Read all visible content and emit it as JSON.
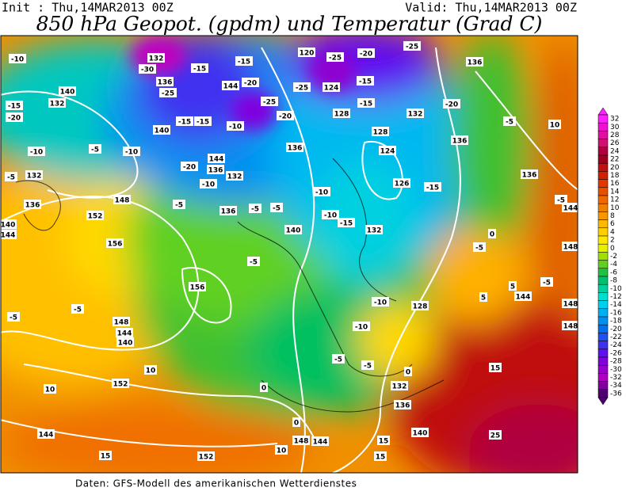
{
  "header": {
    "init": "Init : Thu,14MAR2013 00Z",
    "valid": "Valid: Thu,14MAR2013 00Z",
    "title": "850 hPa Geopot. (gpdm) und Temperatur (Grad C)"
  },
  "footer": "Daten: GFS-Modell des amerikanischen Wetterdienstes",
  "legend": {
    "labels": [
      32,
      30,
      28,
      26,
      24,
      22,
      20,
      18,
      16,
      14,
      12,
      10,
      8,
      6,
      4,
      2,
      0,
      -2,
      -4,
      -6,
      -8,
      -10,
      -12,
      -14,
      -16,
      -18,
      -20,
      -22,
      -24,
      -26,
      -28,
      -30,
      -32,
      -34,
      -36
    ],
    "colors": [
      "#ff20ff",
      "#f010d0",
      "#e010a0",
      "#d01070",
      "#b00040",
      "#a00020",
      "#c01010",
      "#d02000",
      "#e03800",
      "#e85000",
      "#f06800",
      "#f08000",
      "#f89800",
      "#ffb800",
      "#ffd000",
      "#ffe800",
      "#e8f000",
      "#a0e000",
      "#60d020",
      "#20c040",
      "#00c070",
      "#00d0a0",
      "#00e0d0",
      "#00d0f0",
      "#00b0f0",
      "#0090f0",
      "#0070f0",
      "#2050f0",
      "#4030f0",
      "#6010f0",
      "#8000e0",
      "#9800d0",
      "#b000c0",
      "#8000a0",
      "#500070"
    ]
  },
  "map_labels": [
    -10,
    132,
    -30,
    136,
    -25,
    -15,
    144,
    -20,
    -15,
    120,
    -25,
    -20,
    -25,
    136,
    124,
    -25,
    -15,
    -15,
    -25,
    -20,
    128,
    132,
    -20,
    -5,
    10,
    128,
    136,
    124,
    -15,
    -20,
    -15,
    -10,
    132,
    140,
    -5,
    -10,
    140,
    -15,
    -10,
    144,
    136,
    132,
    -20,
    -10,
    136,
    132,
    -5,
    136,
    140,
    144,
    148,
    152,
    156,
    -5,
    136,
    -5,
    -5,
    -10,
    -10,
    -15,
    132,
    126,
    -15,
    136,
    144,
    -5,
    0,
    -5,
    148,
    140,
    -5,
    156,
    -10,
    128,
    -10,
    -5,
    -5,
    148,
    144,
    140,
    10,
    10,
    152,
    0,
    -5,
    -5,
    0,
    132,
    136,
    0,
    148,
    144,
    15,
    140,
    15,
    148,
    -5,
    5,
    5,
    144,
    148,
    15,
    152,
    10,
    15,
    144,
    25
  ]
}
